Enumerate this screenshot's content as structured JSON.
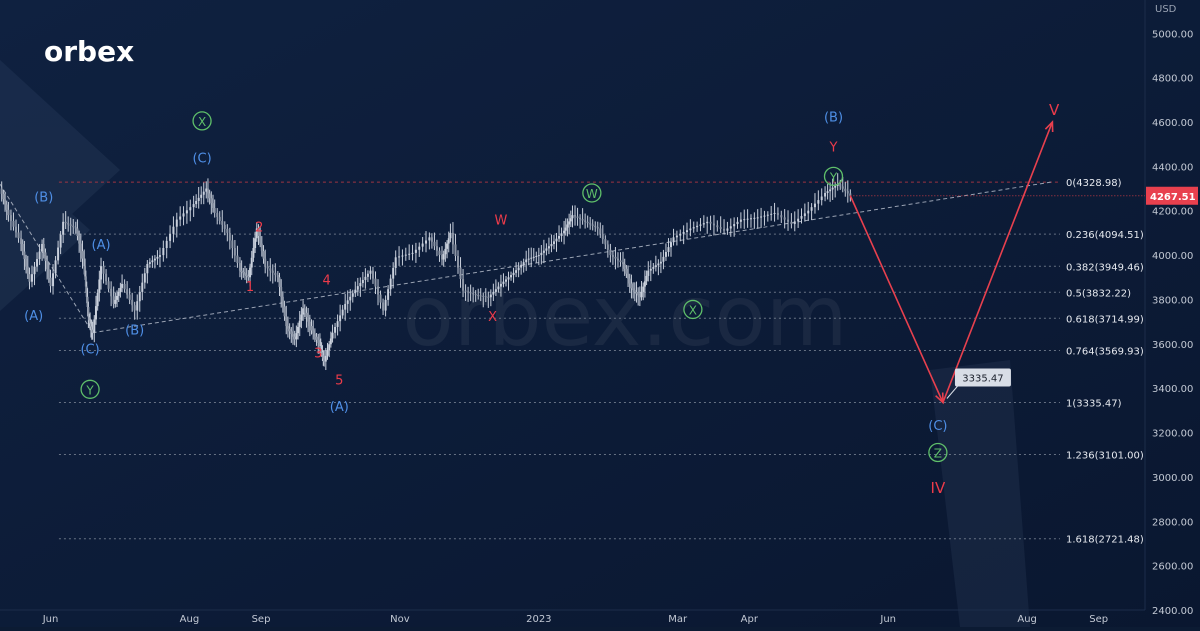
{
  "brand": {
    "logo_text": "orbex",
    "watermark": "orbex.com"
  },
  "colors": {
    "background": "#0c1b33",
    "candle": "#c9d0dc",
    "blue_label": "#4f8fe6",
    "red_label": "#ec3b4a",
    "green_label": "#5fbf6a",
    "fib_line": "#7d8797",
    "zero_line": "#c23a44",
    "trend_line": "#9aa3b3",
    "arrow": "#e8404e",
    "price_tag_bg": "#e8404e",
    "callout_bg": "#d8dde6"
  },
  "chart_data": {
    "type": "line",
    "title": "",
    "xlabel": "",
    "ylabel": "",
    "currency": "USD",
    "ylim": [
      2400,
      5150
    ],
    "y_ticks": [
      2400,
      2600,
      2800,
      3000,
      3200,
      3400,
      3600,
      3800,
      4000,
      4200,
      4400,
      4600,
      4800,
      5000
    ],
    "y_tick_labels": [
      "2400.00",
      "2600.00",
      "2800.00",
      "3000.00",
      "3200.00",
      "3400.00",
      "3600.00",
      "3800.00",
      "4000.00",
      "4200.00",
      "4400.00",
      "4600.00",
      "4800.00",
      "5000.00"
    ],
    "x_ticks": [
      {
        "label": "Jun",
        "t": 2022.42
      },
      {
        "label": "Aug",
        "t": 2022.585
      },
      {
        "label": "Sep",
        "t": 2022.67
      },
      {
        "label": "Nov",
        "t": 2022.835
      },
      {
        "label": "2023",
        "t": 2023.0
      },
      {
        "label": "Mar",
        "t": 2023.165
      },
      {
        "label": "Apr",
        "t": 2023.25
      },
      {
        "label": "Jun",
        "t": 2023.415
      },
      {
        "label": "Aug",
        "t": 2023.58
      },
      {
        "label": "Sep",
        "t": 2023.665
      }
    ],
    "xlim": [
      2022.36,
      2023.72
    ],
    "current_price": "4267.51",
    "current_price_value": 4267.51,
    "price_series": [
      [
        2022.36,
        4300
      ],
      [
        2022.37,
        4180
      ],
      [
        2022.385,
        4050
      ],
      [
        2022.395,
        3880
      ],
      [
        2022.41,
        4050
      ],
      [
        2022.42,
        3860
      ],
      [
        2022.435,
        4150
      ],
      [
        2022.45,
        4120
      ],
      [
        2022.46,
        3950
      ],
      [
        2022.465,
        3720
      ],
      [
        2022.47,
        3650
      ],
      [
        2022.48,
        3950
      ],
      [
        2022.495,
        3780
      ],
      [
        2022.505,
        3870
      ],
      [
        2022.52,
        3750
      ],
      [
        2022.535,
        3960
      ],
      [
        2022.55,
        4000
      ],
      [
        2022.57,
        4160
      ],
      [
        2022.59,
        4230
      ],
      [
        2022.605,
        4300
      ],
      [
        2022.615,
        4190
      ],
      [
        2022.63,
        4100
      ],
      [
        2022.645,
        3930
      ],
      [
        2022.655,
        3900
      ],
      [
        2022.665,
        4120
      ],
      [
        2022.675,
        3950
      ],
      [
        2022.69,
        3900
      ],
      [
        2022.7,
        3680
      ],
      [
        2022.71,
        3620
      ],
      [
        2022.72,
        3760
      ],
      [
        2022.73,
        3660
      ],
      [
        2022.74,
        3590
      ],
      [
        2022.745,
        3520
      ],
      [
        2022.755,
        3650
      ],
      [
        2022.77,
        3780
      ],
      [
        2022.785,
        3860
      ],
      [
        2022.8,
        3930
      ],
      [
        2022.815,
        3750
      ],
      [
        2022.83,
        3990
      ],
      [
        2022.85,
        4010
      ],
      [
        2022.87,
        4080
      ],
      [
        2022.885,
        3980
      ],
      [
        2022.895,
        4100
      ],
      [
        2022.91,
        3840
      ],
      [
        2022.925,
        3820
      ],
      [
        2022.94,
        3810
      ],
      [
        2022.955,
        3870
      ],
      [
        2022.97,
        3920
      ],
      [
        2022.985,
        3980
      ],
      [
        2023.0,
        4000
      ],
      [
        2023.015,
        4050
      ],
      [
        2023.03,
        4110
      ],
      [
        2023.04,
        4180
      ],
      [
        2023.055,
        4150
      ],
      [
        2023.07,
        4120
      ],
      [
        2023.085,
        4000
      ],
      [
        2023.1,
        3960
      ],
      [
        2023.11,
        3850
      ],
      [
        2023.12,
        3810
      ],
      [
        2023.13,
        3930
      ],
      [
        2023.145,
        3970
      ],
      [
        2023.16,
        4080
      ],
      [
        2023.18,
        4120
      ],
      [
        2023.2,
        4150
      ],
      [
        2023.22,
        4110
      ],
      [
        2023.24,
        4160
      ],
      [
        2023.26,
        4170
      ],
      [
        2023.28,
        4190
      ],
      [
        2023.3,
        4140
      ],
      [
        2023.32,
        4200
      ],
      [
        2023.34,
        4280
      ],
      [
        2023.355,
        4320
      ],
      [
        2023.37,
        4267.51
      ]
    ],
    "projection": [
      {
        "t": 2023.37,
        "v": 4267.51
      },
      {
        "t": 2023.48,
        "v": 3335.47
      },
      {
        "t": 2023.61,
        "v": 4600
      }
    ],
    "projection_target": "3335.47",
    "trend_lines": [
      {
        "from": [
          2022.36,
          4320
        ],
        "to": [
          2022.47,
          3650
        ]
      },
      {
        "from": [
          2022.47,
          3650
        ],
        "to": [
          2023.61,
          4330
        ]
      }
    ],
    "fib_levels": [
      {
        "label": "0(4328.98)",
        "value": 4328.98
      },
      {
        "label": "0.236(4094.51)",
        "value": 4094.51
      },
      {
        "label": "0.382(3949.46)",
        "value": 3949.46
      },
      {
        "label": "0.5(3832.22)",
        "value": 3832.22
      },
      {
        "label": "0.618(3714.99)",
        "value": 3714.99
      },
      {
        "label": "0.764(3569.93)",
        "value": 3569.93
      },
      {
        "label": "1(3335.47)",
        "value": 3335.47
      },
      {
        "label": "1.236(3101.00)",
        "value": 3101.0
      },
      {
        "label": "1.618(2721.48)",
        "value": 2721.48
      }
    ],
    "wave_labels": [
      {
        "text": "(B)",
        "color": "blue",
        "circled": false,
        "t": 2022.412,
        "v": 4265
      },
      {
        "text": "(A)",
        "color": "blue",
        "circled": false,
        "t": 2022.4,
        "v": 3730
      },
      {
        "text": "(C)",
        "color": "blue",
        "circled": false,
        "t": 2022.467,
        "v": 3580
      },
      {
        "text": "Y",
        "color": "green",
        "circled": true,
        "t": 2022.467,
        "v": 3395
      },
      {
        "text": "(A)",
        "color": "blue",
        "circled": false,
        "t": 2022.48,
        "v": 4050
      },
      {
        "text": "(B)",
        "color": "blue",
        "circled": false,
        "t": 2022.52,
        "v": 3665
      },
      {
        "text": "X",
        "color": "green",
        "circled": true,
        "t": 2022.6,
        "v": 4605
      },
      {
        "text": "(C)",
        "color": "blue",
        "circled": false,
        "t": 2022.6,
        "v": 4440
      },
      {
        "text": "2",
        "color": "red",
        "circled": false,
        "t": 2022.668,
        "v": 4130
      },
      {
        "text": "1",
        "color": "red",
        "circled": false,
        "t": 2022.657,
        "v": 3860
      },
      {
        "text": "4",
        "color": "red",
        "circled": false,
        "t": 2022.748,
        "v": 3890
      },
      {
        "text": "3",
        "color": "red",
        "circled": false,
        "t": 2022.738,
        "v": 3560
      },
      {
        "text": "5",
        "color": "red",
        "circled": false,
        "t": 2022.763,
        "v": 3440
      },
      {
        "text": "(A)",
        "color": "blue",
        "circled": false,
        "t": 2022.763,
        "v": 3320
      },
      {
        "text": "W",
        "color": "red",
        "circled": false,
        "t": 2022.955,
        "v": 4160
      },
      {
        "text": "X",
        "color": "red",
        "circled": false,
        "t": 2022.945,
        "v": 3725
      },
      {
        "text": "W",
        "color": "green",
        "circled": true,
        "t": 2023.063,
        "v": 4280
      },
      {
        "text": "X",
        "color": "green",
        "circled": true,
        "t": 2023.183,
        "v": 3755
      },
      {
        "text": "(B)",
        "color": "blue",
        "circled": false,
        "t": 2023.35,
        "v": 4625
      },
      {
        "text": "Y",
        "color": "red",
        "circled": false,
        "t": 2023.35,
        "v": 4490
      },
      {
        "text": "Y",
        "color": "green",
        "circled": true,
        "t": 2023.35,
        "v": 4355
      },
      {
        "text": "V",
        "color": "red",
        "circled": false,
        "t": 2023.612,
        "v": 4655
      },
      {
        "text": "(C)",
        "color": "blue",
        "circled": false,
        "t": 2023.474,
        "v": 3235
      },
      {
        "text": "Z",
        "color": "green",
        "circled": true,
        "t": 2023.474,
        "v": 3110
      },
      {
        "text": "IV",
        "color": "red",
        "circled": false,
        "t": 2023.474,
        "v": 2950
      }
    ]
  }
}
